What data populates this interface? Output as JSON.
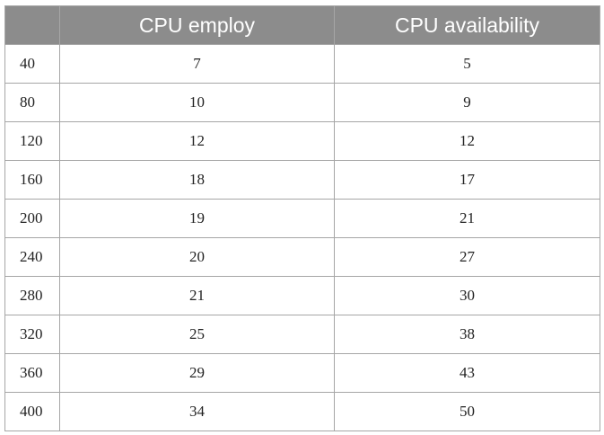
{
  "table": {
    "headers": [
      "",
      "CPU employ",
      "CPU availability"
    ],
    "rows": [
      [
        "40",
        "7",
        "5"
      ],
      [
        "80",
        "10",
        "9"
      ],
      [
        "120",
        "12",
        "12"
      ],
      [
        "160",
        "18",
        "17"
      ],
      [
        "200",
        "19",
        "21"
      ],
      [
        "240",
        "20",
        "27"
      ],
      [
        "280",
        "21",
        "30"
      ],
      [
        "320",
        "25",
        "38"
      ],
      [
        "360",
        "29",
        "43"
      ],
      [
        "400",
        "34",
        "50"
      ]
    ]
  },
  "colors": {
    "header_bg": "#8c8c8c",
    "header_text": "#ffffff",
    "border": "#a6a6a6"
  }
}
